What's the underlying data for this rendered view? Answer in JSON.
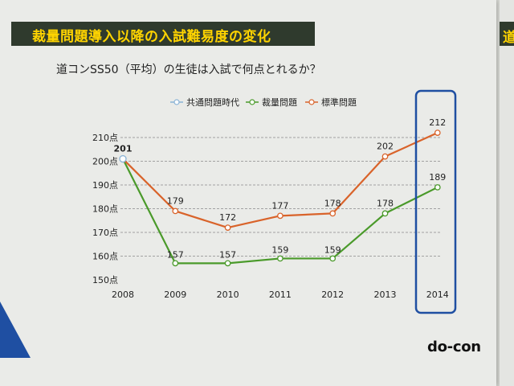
{
  "slide": {
    "title": "裁量問題導入以降の入試難易度の変化",
    "next_slide_glyph": "道"
  },
  "logo": {
    "text": "do-con"
  },
  "colors": {
    "title_band": "#2f3a2d",
    "title_text": "#ffd400",
    "kyotsu": "#8ab3d6",
    "sairyo": "#4a9a2a",
    "hyojun": "#d9632a",
    "highlight": "#1f4fa2"
  },
  "chart_data": {
    "type": "line",
    "title": "道コンSS50（平均）の生徒は入試で何点とれるか？",
    "categories": [
      "2008",
      "2009",
      "2010",
      "2011",
      "2012",
      "2013",
      "2014"
    ],
    "y_tick_labels": [
      "150点",
      "160点",
      "170点",
      "180点",
      "190点",
      "200点",
      "210点"
    ],
    "y_ticks": [
      150,
      160,
      170,
      180,
      190,
      200,
      210
    ],
    "ylim": [
      150,
      220
    ],
    "grid": true,
    "legend_position": "top",
    "series": [
      {
        "name": "共通問題時代",
        "key": "kyotsu",
        "values": [
          201,
          null,
          null,
          null,
          null,
          null,
          null
        ],
        "labels": [
          null,
          null,
          null,
          null,
          null,
          null,
          null
        ]
      },
      {
        "name": "裁量問題",
        "key": "sairyo",
        "values": [
          201,
          157,
          157,
          159,
          159,
          178,
          189
        ],
        "labels": [
          null,
          "157",
          "157",
          "159",
          "159",
          "178",
          "189"
        ]
      },
      {
        "name": "標準問題",
        "key": "hyojun",
        "values": [
          201,
          179,
          172,
          177,
          178,
          202,
          212
        ],
        "labels": [
          "201",
          "179",
          "172",
          "177",
          "178",
          "202",
          "212"
        ]
      }
    ],
    "highlighted_category": "2014"
  }
}
